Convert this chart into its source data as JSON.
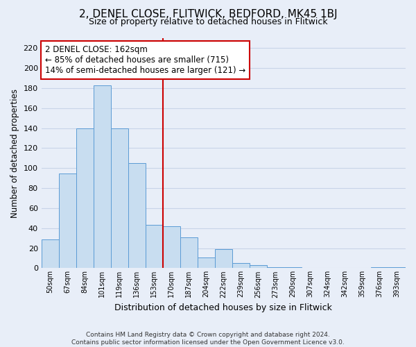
{
  "title": "2, DENEL CLOSE, FLITWICK, BEDFORD, MK45 1BJ",
  "subtitle": "Size of property relative to detached houses in Flitwick",
  "xlabel": "Distribution of detached houses by size in Flitwick",
  "ylabel": "Number of detached properties",
  "categories": [
    "50sqm",
    "67sqm",
    "84sqm",
    "101sqm",
    "119sqm",
    "136sqm",
    "153sqm",
    "170sqm",
    "187sqm",
    "204sqm",
    "222sqm",
    "239sqm",
    "256sqm",
    "273sqm",
    "290sqm",
    "307sqm",
    "324sqm",
    "342sqm",
    "359sqm",
    "376sqm",
    "393sqm"
  ],
  "values": [
    29,
    95,
    140,
    183,
    140,
    105,
    43,
    42,
    31,
    11,
    19,
    5,
    3,
    1,
    1,
    0,
    0,
    0,
    0,
    1,
    1
  ],
  "bar_color": "#c8ddf0",
  "bar_edge_color": "#5b9bd5",
  "vline_color": "#cc0000",
  "annotation_line1": "2 DENEL CLOSE: 162sqm",
  "annotation_line2": "← 85% of detached houses are smaller (715)",
  "annotation_line3": "14% of semi-detached houses are larger (121) →",
  "annotation_box_color": "#ffffff",
  "annotation_box_edge_color": "#cc0000",
  "ylim": [
    0,
    230
  ],
  "yticks": [
    0,
    20,
    40,
    60,
    80,
    100,
    120,
    140,
    160,
    180,
    200,
    220
  ],
  "footer_line1": "Contains HM Land Registry data © Crown copyright and database right 2024.",
  "footer_line2": "Contains public sector information licensed under the Open Government Licence v3.0.",
  "background_color": "#e8eef8",
  "plot_bg_color": "#e8eef8",
  "grid_color": "#c8d4e8"
}
